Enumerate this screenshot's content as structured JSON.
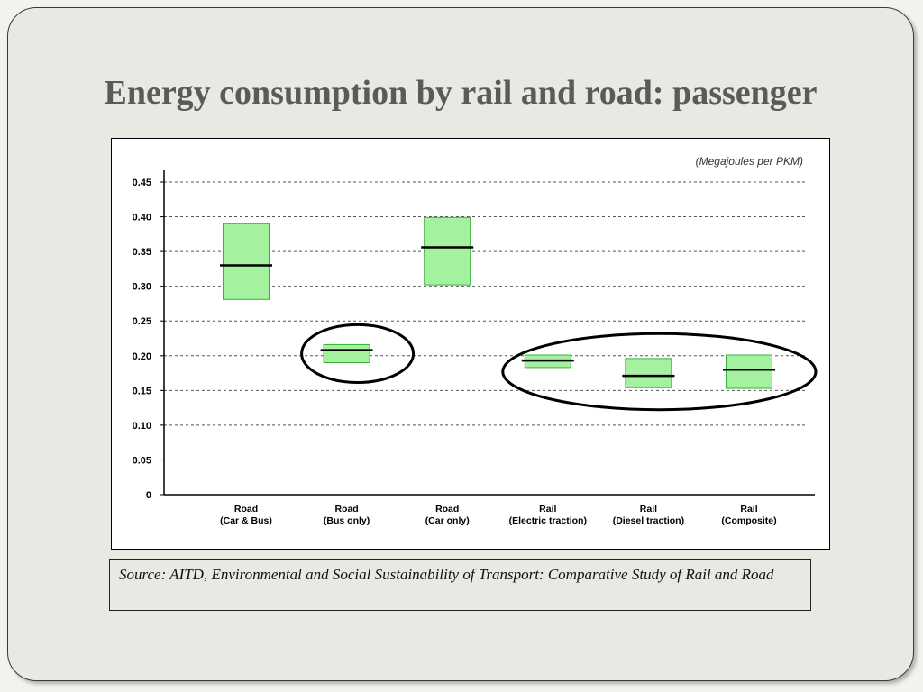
{
  "slide": {
    "title": "Energy consumption by rail and road: passenger"
  },
  "chart_data": {
    "type": "bar",
    "unit_label": "(Megajoules per PKM)",
    "categories": [
      {
        "line1": "Road",
        "line2": "(Car & Bus)"
      },
      {
        "line1": "Road",
        "line2": "(Bus only)"
      },
      {
        "line1": "Road",
        "line2": "(Car only)"
      },
      {
        "line1": "Rail",
        "line2": "(Electric traction)"
      },
      {
        "line1": "Rail",
        "line2": "(Diesel traction)"
      },
      {
        "line1": "Rail",
        "line2": "(Composite)"
      }
    ],
    "low": [
      0.281,
      0.19,
      0.302,
      0.183,
      0.154,
      0.153
    ],
    "high": [
      0.39,
      0.216,
      0.399,
      0.201,
      0.196,
      0.201
    ],
    "median": [
      0.33,
      0.208,
      0.356,
      0.193,
      0.171,
      0.18
    ],
    "ylim": [
      0,
      0.45
    ],
    "yticks": [
      "0",
      "0.05",
      "0.10",
      "0.15",
      "0.20",
      "0.25",
      "0.30",
      "0.35",
      "0.40",
      "0.45"
    ],
    "grid": true,
    "circled_groups": [
      [
        1
      ],
      [
        3,
        4,
        5
      ]
    ],
    "colors": {
      "bar_fill": "#a4f2a0",
      "bar_stroke": "#38b038",
      "median": "#000000",
      "circle": "#000000",
      "grid": "#555555"
    }
  },
  "source": {
    "text": "Source: AITD, Environmental and Social Sustainability of Transport: Comparative Study of Rail and Road"
  }
}
